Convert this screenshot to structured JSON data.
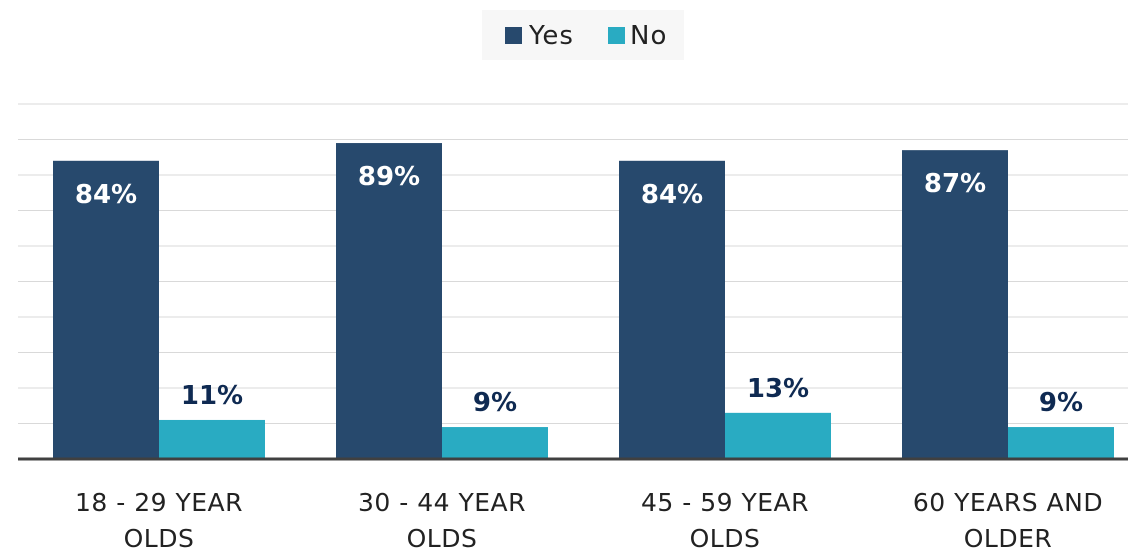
{
  "chart_data": {
    "type": "bar",
    "title": "",
    "xlabel": "",
    "ylabel": "",
    "categories": [
      [
        "18 - 29 YEAR",
        "OLDS"
      ],
      [
        "30 - 44 YEAR",
        "OLDS"
      ],
      [
        "45 - 59 YEAR",
        "OLDS"
      ],
      [
        "60 YEARS AND",
        "OLDER"
      ]
    ],
    "series": [
      {
        "name": "Yes",
        "values": [
          84,
          89,
          84,
          87
        ],
        "labels": [
          "84%",
          "89%",
          "84%",
          "87%"
        ],
        "color": "#27496d",
        "label_color": "#ffffff"
      },
      {
        "name": "No",
        "values": [
          11,
          9,
          13,
          9
        ],
        "labels": [
          "11%",
          "9%",
          "13%",
          "9%"
        ],
        "color": "#29abc2",
        "label_color": "#0f2a52"
      }
    ],
    "ylim": [
      0,
      100
    ],
    "grid": true,
    "legend_position": "top-center"
  }
}
